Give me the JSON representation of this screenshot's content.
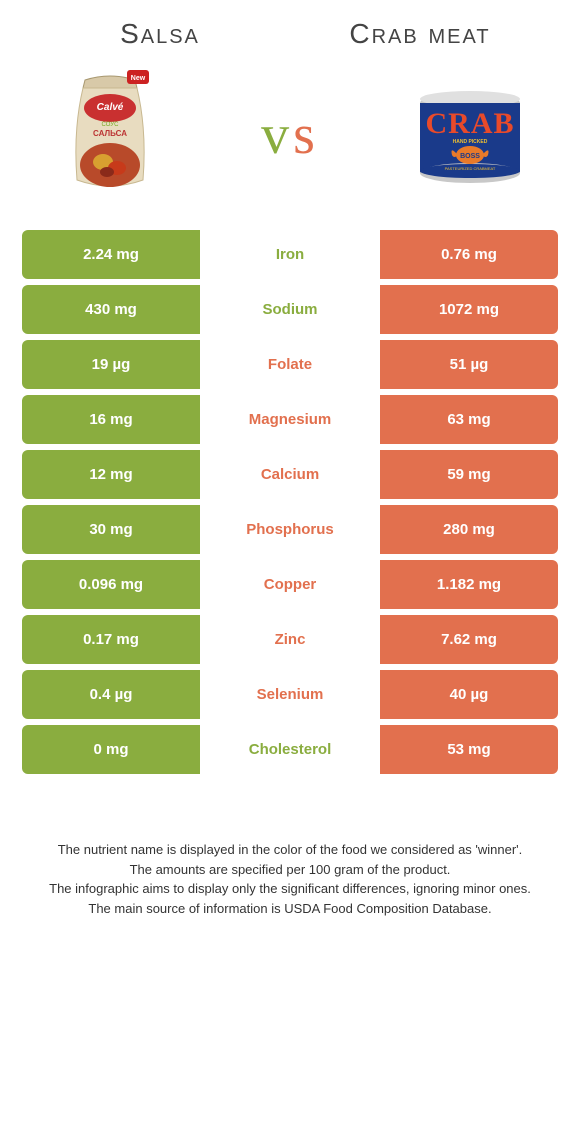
{
  "left_food": {
    "title": "Salsa",
    "color": "#8aad3f"
  },
  "right_food": {
    "title": "Crab meat",
    "color": "#e2704e"
  },
  "vs_text": "vs",
  "rows": [
    {
      "label": "Iron",
      "left": "2.24 mg",
      "right": "0.76 mg",
      "winner": "left"
    },
    {
      "label": "Sodium",
      "left": "430 mg",
      "right": "1072 mg",
      "winner": "left"
    },
    {
      "label": "Folate",
      "left": "19 µg",
      "right": "51 µg",
      "winner": "right"
    },
    {
      "label": "Magnesium",
      "left": "16 mg",
      "right": "63 mg",
      "winner": "right"
    },
    {
      "label": "Calcium",
      "left": "12 mg",
      "right": "59 mg",
      "winner": "right"
    },
    {
      "label": "Phosphorus",
      "left": "30 mg",
      "right": "280 mg",
      "winner": "right"
    },
    {
      "label": "Copper",
      "left": "0.096 mg",
      "right": "1.182 mg",
      "winner": "right"
    },
    {
      "label": "Zinc",
      "left": "0.17 mg",
      "right": "7.62 mg",
      "winner": "right"
    },
    {
      "label": "Selenium",
      "left": "0.4 µg",
      "right": "40 µg",
      "winner": "right"
    },
    {
      "label": "Cholesterol",
      "left": "0 mg",
      "right": "53 mg",
      "winner": "left"
    }
  ],
  "footnotes": [
    "The nutrient name is displayed in the color of the food we considered as 'winner'.",
    "The amounts are specified per 100 gram of the product.",
    "The infographic aims to display only the significant differences, ignoring minor ones.",
    "The main source of information is USDA Food Composition Database."
  ]
}
